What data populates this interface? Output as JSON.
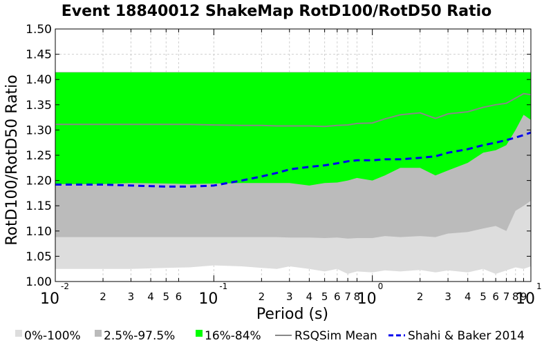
{
  "chart_data": {
    "type": "area",
    "title": "Event 18840012 ShakeMap RotD100/RotD50 Ratio",
    "xlabel": "Period (s)",
    "ylabel": "RotD100/RotD50 Ratio",
    "xscale": "log",
    "xlim": [
      0.01,
      10
    ],
    "ylim": [
      1.0,
      1.5
    ],
    "yticks": [
      "1.00",
      "1.05",
      "1.10",
      "1.15",
      "1.20",
      "1.25",
      "1.30",
      "1.35",
      "1.40",
      "1.45",
      "1.50"
    ],
    "xticks_major": [
      {
        "value": 0.01,
        "base": "10",
        "exp": "-2"
      },
      {
        "value": 0.1,
        "base": "10",
        "exp": "-1"
      },
      {
        "value": 1,
        "base": "10",
        "exp": "0"
      },
      {
        "value": 10,
        "base": "10",
        "exp": "1"
      }
    ],
    "xticks_minor": [
      {
        "value": 0.02,
        "label": "2"
      },
      {
        "value": 0.03,
        "label": "3"
      },
      {
        "value": 0.04,
        "label": "4"
      },
      {
        "value": 0.05,
        "label": "5"
      },
      {
        "value": 0.06,
        "label": "6"
      },
      {
        "value": 0.2,
        "label": "2"
      },
      {
        "value": 0.3,
        "label": "3"
      },
      {
        "value": 0.4,
        "label": "4"
      },
      {
        "value": 0.5,
        "label": "5"
      },
      {
        "value": 0.6,
        "label": "6"
      },
      {
        "value": 0.7,
        "label": "7"
      },
      {
        "value": 0.8,
        "label": "8"
      },
      {
        "value": 2,
        "label": "2"
      },
      {
        "value": 3,
        "label": "3"
      },
      {
        "value": 4,
        "label": "4"
      },
      {
        "value": 5,
        "label": "5"
      },
      {
        "value": 6,
        "label": "6"
      },
      {
        "value": 7,
        "label": "7"
      },
      {
        "value": 8,
        "label": "8"
      },
      {
        "value": 9,
        "label": "9"
      }
    ],
    "grid": true,
    "legend_position": "bottom",
    "x": [
      0.01,
      0.02,
      0.03,
      0.05,
      0.07,
      0.1,
      0.15,
      0.2,
      0.25,
      0.3,
      0.4,
      0.5,
      0.6,
      0.7,
      0.8,
      1.0,
      1.2,
      1.5,
      2.0,
      2.5,
      3.0,
      4.0,
      5.0,
      6.0,
      7.0,
      8.0,
      9.0,
      10.0
    ],
    "series": [
      {
        "name": "0%-100%",
        "kind": "band",
        "color": "#dddddd",
        "lower": [
          1.025,
          1.025,
          1.025,
          1.027,
          1.028,
          1.032,
          1.03,
          1.027,
          1.025,
          1.03,
          1.025,
          1.02,
          1.025,
          1.015,
          1.02,
          1.018,
          1.022,
          1.02,
          1.023,
          1.018,
          1.022,
          1.018,
          1.025,
          1.015,
          1.022,
          1.028,
          1.025,
          1.03
        ],
        "upper": [
          1.415,
          1.415,
          1.415,
          1.415,
          1.415,
          1.415,
          1.415,
          1.415,
          1.415,
          1.415,
          1.415,
          1.415,
          1.415,
          1.415,
          1.415,
          1.415,
          1.415,
          1.415,
          1.415,
          1.415,
          1.415,
          1.415,
          1.415,
          1.415,
          1.415,
          1.415,
          1.415,
          1.415
        ]
      },
      {
        "name": "2.5%-97.5%",
        "kind": "band",
        "color": "#bbbbbb",
        "lower": [
          1.088,
          1.088,
          1.088,
          1.088,
          1.088,
          1.088,
          1.088,
          1.088,
          1.088,
          1.087,
          1.087,
          1.086,
          1.087,
          1.085,
          1.086,
          1.086,
          1.09,
          1.088,
          1.09,
          1.088,
          1.095,
          1.098,
          1.105,
          1.11,
          1.1,
          1.14,
          1.15,
          1.16
        ],
        "upper": [
          1.415,
          1.415,
          1.415,
          1.415,
          1.415,
          1.415,
          1.415,
          1.415,
          1.415,
          1.415,
          1.415,
          1.415,
          1.415,
          1.415,
          1.415,
          1.415,
          1.415,
          1.415,
          1.415,
          1.415,
          1.415,
          1.415,
          1.415,
          1.415,
          1.415,
          1.415,
          1.415,
          1.415
        ]
      },
      {
        "name": "16%-84%",
        "kind": "band",
        "color": "#00ff00",
        "lower": [
          1.193,
          1.193,
          1.195,
          1.194,
          1.193,
          1.194,
          1.195,
          1.195,
          1.195,
          1.195,
          1.19,
          1.195,
          1.196,
          1.2,
          1.205,
          1.2,
          1.21,
          1.225,
          1.225,
          1.21,
          1.22,
          1.235,
          1.255,
          1.26,
          1.27,
          1.3,
          1.33,
          1.32
        ],
        "upper": [
          1.414,
          1.414,
          1.414,
          1.414,
          1.414,
          1.414,
          1.414,
          1.414,
          1.414,
          1.414,
          1.414,
          1.414,
          1.414,
          1.414,
          1.414,
          1.414,
          1.414,
          1.414,
          1.414,
          1.414,
          1.414,
          1.414,
          1.414,
          1.414,
          1.414,
          1.414,
          1.414,
          1.414
        ]
      },
      {
        "name": "RSQSim Mean",
        "kind": "line",
        "color": "#888888",
        "dash": "solid",
        "values": [
          1.311,
          1.311,
          1.311,
          1.311,
          1.311,
          1.31,
          1.309,
          1.309,
          1.308,
          1.308,
          1.308,
          1.307,
          1.309,
          1.31,
          1.313,
          1.314,
          1.322,
          1.33,
          1.334,
          1.323,
          1.332,
          1.336,
          1.345,
          1.35,
          1.353,
          1.363,
          1.372,
          1.37
        ]
      },
      {
        "name": "Shahi & Baker 2014",
        "kind": "line",
        "color": "#0000ee",
        "dash": "dashed",
        "values": [
          1.192,
          1.192,
          1.19,
          1.188,
          1.188,
          1.19,
          1.2,
          1.208,
          1.215,
          1.222,
          1.227,
          1.23,
          1.234,
          1.238,
          1.24,
          1.24,
          1.242,
          1.242,
          1.245,
          1.248,
          1.255,
          1.262,
          1.27,
          1.275,
          1.28,
          1.285,
          1.29,
          1.295
        ]
      }
    ]
  }
}
